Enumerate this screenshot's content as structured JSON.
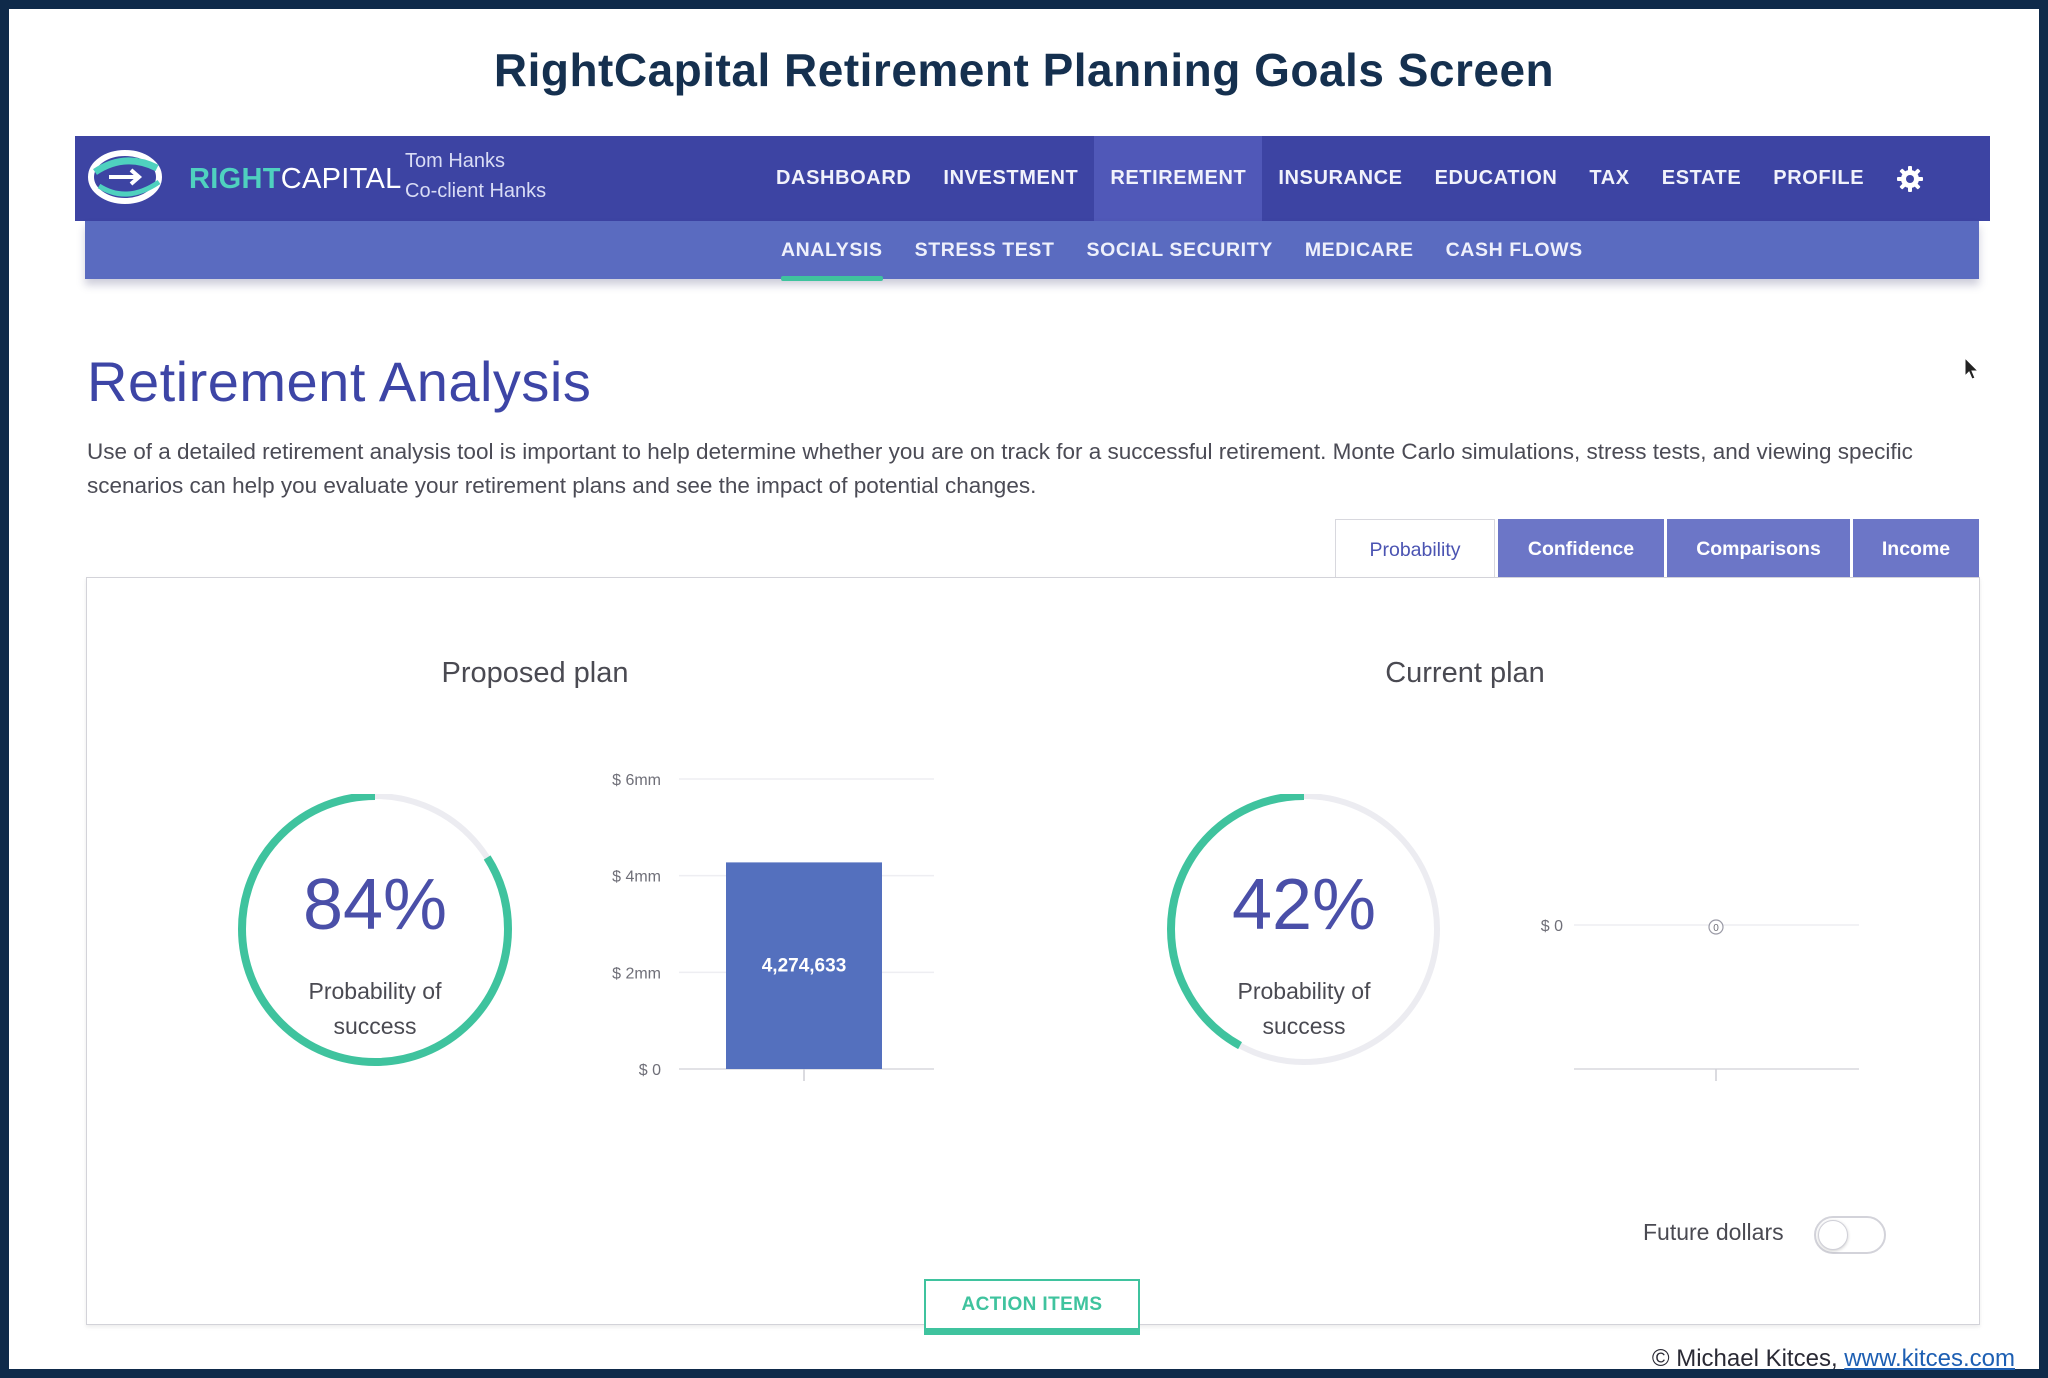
{
  "slide_title": "RightCapital Retirement Planning Goals Screen",
  "logo": {
    "right": "RIGHT",
    "capital": "CAPITAL"
  },
  "client": {
    "line1": "Tom Hanks",
    "line2": "Co-client Hanks"
  },
  "nav": [
    {
      "label": "DASHBOARD",
      "active": false
    },
    {
      "label": "INVESTMENT",
      "active": false
    },
    {
      "label": "RETIREMENT",
      "active": true
    },
    {
      "label": "INSURANCE",
      "active": false
    },
    {
      "label": "EDUCATION",
      "active": false
    },
    {
      "label": "TAX",
      "active": false
    },
    {
      "label": "ESTATE",
      "active": false
    },
    {
      "label": "PROFILE",
      "active": false
    }
  ],
  "subnav": [
    {
      "label": "ANALYSIS",
      "active": true
    },
    {
      "label": "STRESS TEST",
      "active": false
    },
    {
      "label": "SOCIAL SECURITY",
      "active": false
    },
    {
      "label": "MEDICARE",
      "active": false
    },
    {
      "label": "CASH FLOWS",
      "active": false
    }
  ],
  "page": {
    "title": "Retirement Analysis",
    "intro": "Use of a detailed retirement analysis tool is important to help determine whether you are on track for a successful retirement. Monte Carlo simulations, stress tests, and viewing specific scenarios can help you evaluate your retirement plans and see the impact of potential changes."
  },
  "tabs": [
    {
      "label": "Probability",
      "active": true
    },
    {
      "label": "Confidence",
      "active": false
    },
    {
      "label": "Comparisons",
      "active": false
    },
    {
      "label": "Income",
      "active": false
    }
  ],
  "proposed": {
    "title": "Proposed plan",
    "probability": 0.84,
    "pct_text": "84%",
    "label_line1": "Probability of",
    "label_line2": "success"
  },
  "current": {
    "title": "Current plan",
    "probability": 0.42,
    "pct_text": "42%",
    "label_line1": "Probability of",
    "label_line2": "success"
  },
  "chart_data": [
    {
      "type": "bar",
      "categories": [
        ""
      ],
      "values": [
        4274633
      ],
      "data_labels": [
        "4,274,633"
      ],
      "y_ticks": [
        "$ 0",
        "$ 2mm",
        "$ 4mm",
        "$ 6mm"
      ],
      "ylim": [
        0,
        6000000
      ],
      "bar_color": "#5470be",
      "grid": true
    },
    {
      "type": "bar",
      "categories": [
        ""
      ],
      "values": [
        0
      ],
      "data_labels": [
        "0"
      ],
      "y_ticks": [
        "$ 0"
      ],
      "grid": true
    }
  ],
  "future_dollars": {
    "label": "Future dollars",
    "on": false
  },
  "action_items": "ACTION ITEMS",
  "credit": {
    "text": "© Michael Kitces, ",
    "link": "www.kitces.com"
  },
  "colors": {
    "nav_bg": "#3d44a3",
    "subnav_bg": "#5a6bc0",
    "accent_teal": "#3fc39e",
    "title_purple": "#3d45a6",
    "tab_inactive": "#6c76c7"
  }
}
